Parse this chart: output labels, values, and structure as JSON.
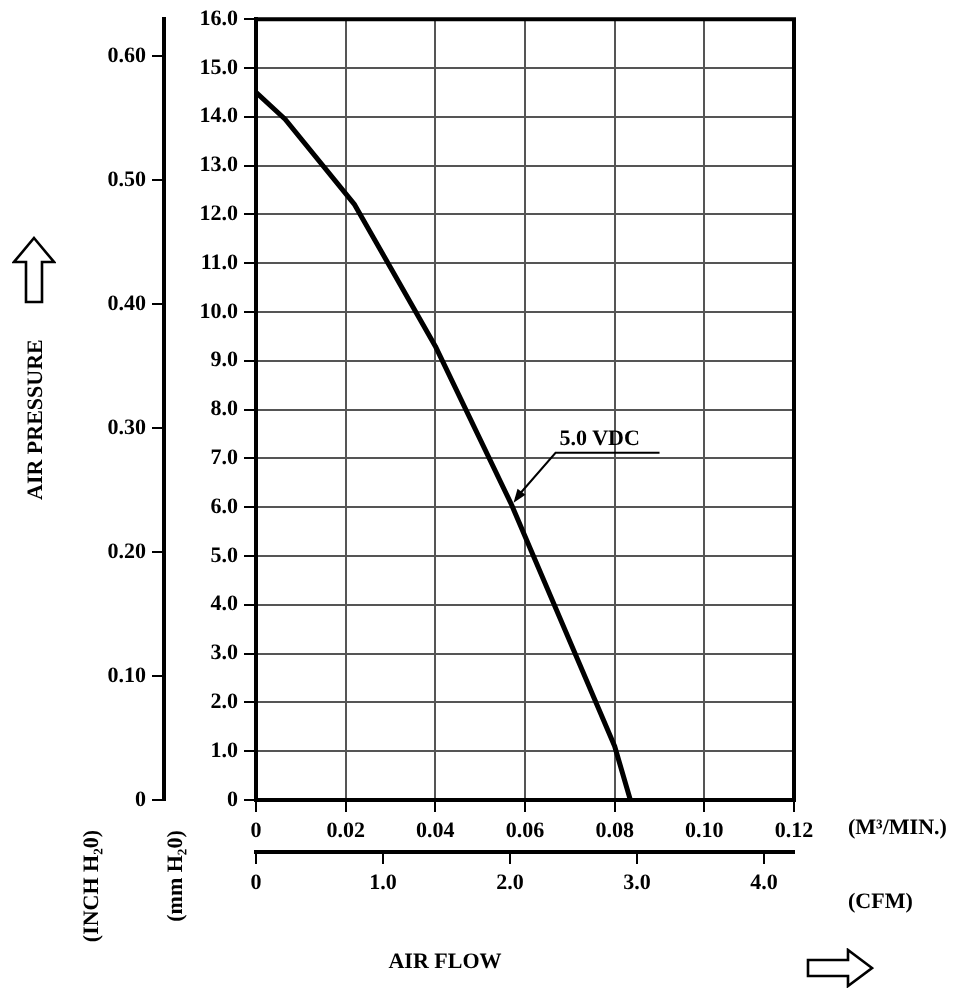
{
  "chart_data": {
    "type": "line",
    "xlabel": "(M³/MIN.)",
    "x2label": "(CFM)",
    "ylabel": "(mm H₂0)",
    "y2label": "(INCH H₂0)",
    "annotations": [
      "AIR FLOW",
      "AIR PRESSURE"
    ],
    "xlim": [
      0,
      0.12
    ],
    "xticks": [
      0,
      0.02,
      0.04,
      0.06,
      0.08,
      {
        "value": 0.1,
        "label": "0.10"
      },
      {
        "value": 0.12,
        "label": "0.12"
      }
    ],
    "x2lim": [
      0,
      4.237
    ],
    "x2ticks": [
      0,
      {
        "value": 1,
        "label": "1.0"
      },
      {
        "value": 2,
        "label": "2.0"
      },
      {
        "value": 3,
        "label": "3.0"
      },
      {
        "value": 4,
        "label": "4.0"
      }
    ],
    "ylim": [
      0,
      16
    ],
    "yticks": [
      0,
      {
        "value": 1,
        "label": "1.0"
      },
      {
        "value": 2,
        "label": "2.0"
      },
      {
        "value": 3,
        "label": "3.0"
      },
      {
        "value": 4,
        "label": "4.0"
      },
      {
        "value": 5,
        "label": "5.0"
      },
      {
        "value": 6,
        "label": "6.0"
      },
      {
        "value": 7,
        "label": "7.0"
      },
      {
        "value": 8,
        "label": "8.0"
      },
      {
        "value": 9,
        "label": "9.0"
      },
      {
        "value": 10,
        "label": "10.0"
      },
      {
        "value": 11,
        "label": "11.0"
      },
      {
        "value": 12,
        "label": "12.0"
      },
      {
        "value": 13,
        "label": "13.0"
      },
      {
        "value": 14,
        "label": "14.0"
      },
      {
        "value": 15,
        "label": "15.0"
      },
      {
        "value": 16,
        "label": "16.0"
      }
    ],
    "y2lim": [
      0,
      0.63
    ],
    "y2ticks": [
      0,
      {
        "value": 0.1,
        "label": "0.10"
      },
      {
        "value": 0.2,
        "label": "0.20"
      },
      {
        "value": 0.3,
        "label": "0.30"
      },
      {
        "value": 0.4,
        "label": "0.40"
      },
      {
        "value": 0.5,
        "label": "0.50"
      },
      {
        "value": 0.6,
        "label": "0.60"
      }
    ],
    "grid": true,
    "legend": false,
    "marker": "none",
    "line_style": "solid",
    "series": [
      {
        "name": "5.0 VDC",
        "color": "#000000",
        "x": [
          0,
          0.0065,
          0.022,
          0.04,
          0.057,
          0.08,
          0.0835
        ],
        "values": [
          14.5,
          13.95,
          12.2,
          9.3,
          6.05,
          1.1,
          0
        ]
      }
    ]
  }
}
